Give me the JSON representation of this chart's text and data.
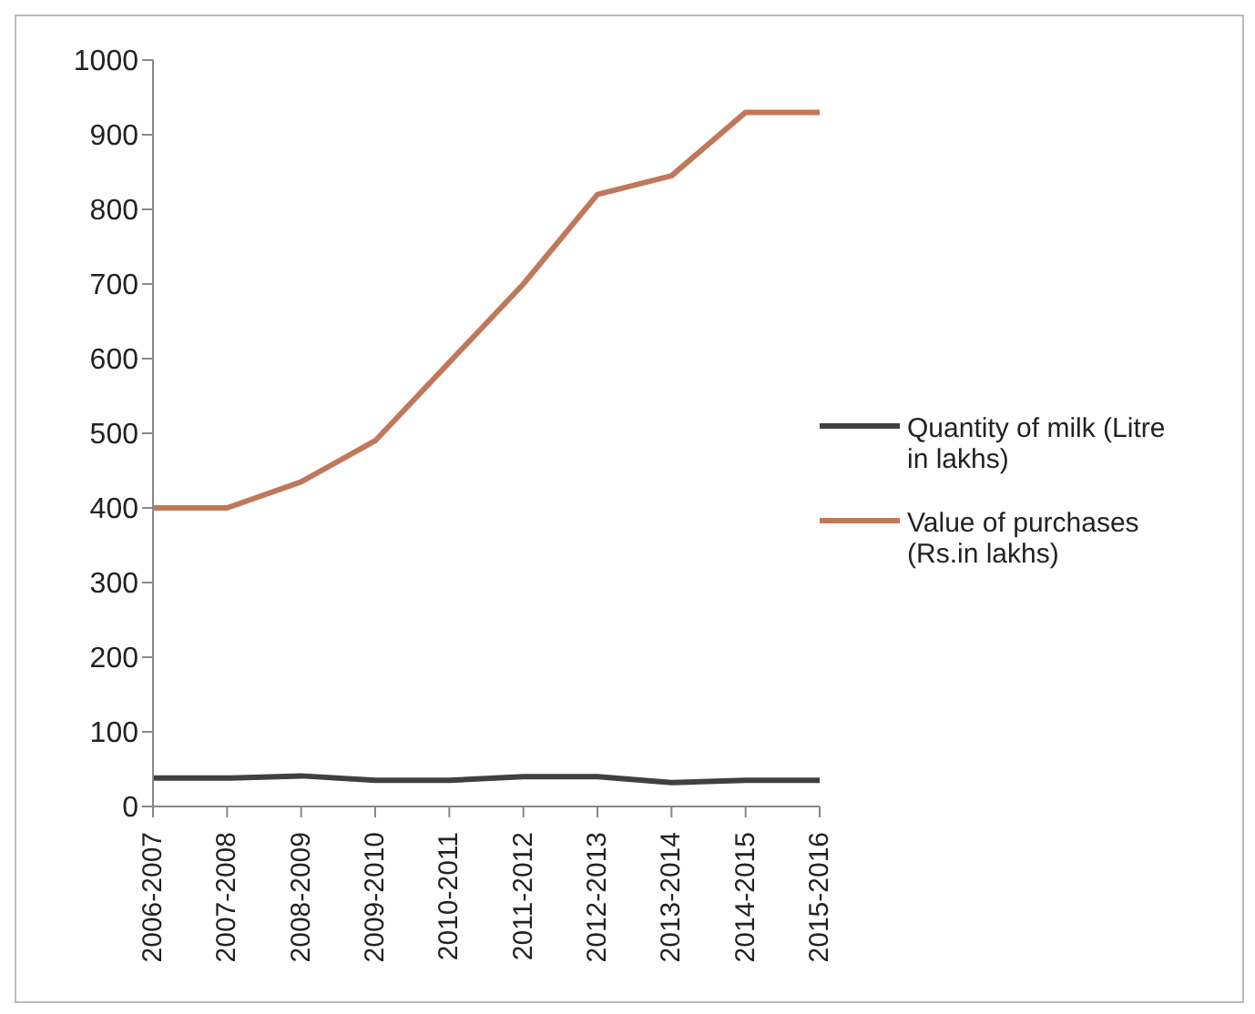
{
  "chart_data": {
    "type": "line",
    "categories": [
      "2006-2007",
      "2007-2008",
      "2008-2009",
      "2009-2010",
      "2010-2011",
      "2011-2012",
      "2012-2013",
      "2013-2014",
      "2014-2015",
      "2015-2016"
    ],
    "series": [
      {
        "name": "Quantity of milk (Litre  in lakhs)",
        "color": "#404040",
        "values": [
          38,
          38,
          41,
          35,
          35,
          40,
          40,
          32,
          35,
          35
        ]
      },
      {
        "name": "Value of purchases (Rs.in lakhs)",
        "color": "#c0785a",
        "values": [
          400,
          400,
          435,
          490,
          595,
          700,
          820,
          845,
          930,
          930
        ]
      }
    ],
    "ylim": [
      0,
      1000
    ],
    "yticks": [
      0,
      100,
      200,
      300,
      400,
      500,
      600,
      700,
      800,
      900,
      1000
    ],
    "grid": false,
    "legend": "right",
    "marker": "none",
    "line_style": "solid"
  }
}
